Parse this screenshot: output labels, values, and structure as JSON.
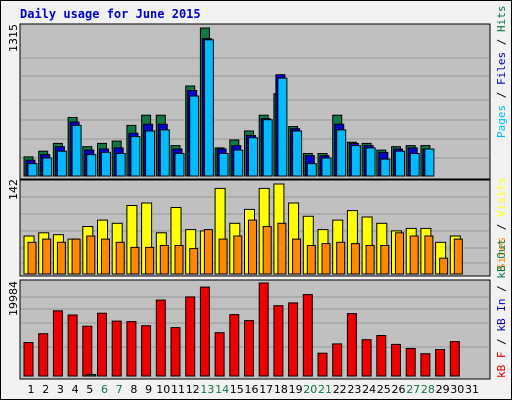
{
  "title": "Daily usage for June 2015",
  "colors": {
    "title": "#0000cc",
    "panel_bg": "#c0c0c0",
    "frame_bg": "#f2f2f2",
    "pages": "#117744",
    "files": "#0000cc",
    "hits": "#00bbff",
    "visits": "#ffff00",
    "sites": "#ff8800",
    "kb_f": "#ee0000",
    "kb_in": "#0000cc",
    "kb_out": "#117744",
    "weekend": "#117744",
    "weekday": "#000000"
  },
  "legends": {
    "top": [
      {
        "text": "Pages",
        "color": "#00bbff"
      },
      {
        "text": " / ",
        "color": "#000000"
      },
      {
        "text": "Files",
        "color": "#0000cc"
      },
      {
        "text": " / ",
        "color": "#000000"
      },
      {
        "text": "Hits",
        "color": "#117744"
      }
    ],
    "middle": [
      {
        "text": "Sites",
        "color": "#ff8800"
      },
      {
        "text": " / ",
        "color": "#000000"
      },
      {
        "text": "Visits",
        "color": "#ffff00"
      }
    ],
    "bottom": [
      {
        "text": "kB F",
        "color": "#ee0000"
      },
      {
        "text": " / ",
        "color": "#000000"
      },
      {
        "text": "kB In",
        "color": "#0000cc"
      },
      {
        "text": " / ",
        "color": "#000000"
      },
      {
        "text": "kB Out",
        "color": "#117744"
      }
    ]
  },
  "chart_data": [
    {
      "type": "bar",
      "panel": "top",
      "ymax_label": "1315",
      "ylim": [
        0,
        1315
      ],
      "categories": [
        "1",
        "2",
        "3",
        "4",
        "5",
        "6",
        "7",
        "8",
        "9",
        "10",
        "11",
        "12",
        "13",
        "14",
        "15",
        "16",
        "17",
        "18",
        "19",
        "20",
        "21",
        "22",
        "23",
        "24",
        "25",
        "26",
        "27",
        "28",
        "29",
        "30",
        "31"
      ],
      "weekend_days": [
        "6",
        "7",
        "13",
        "14",
        "20",
        "21",
        "27",
        "28"
      ],
      "series": [
        {
          "name": "Hits",
          "values": [
            170,
            220,
            290,
            520,
            260,
            290,
            310,
            450,
            540,
            540,
            270,
            800,
            1315,
            250,
            320,
            400,
            540,
            730,
            440,
            200,
            200,
            540,
            300,
            290,
            230,
            260,
            270,
            270,
            0,
            0,
            0
          ]
        },
        {
          "name": "Files",
          "values": [
            140,
            190,
            260,
            480,
            230,
            240,
            250,
            380,
            460,
            460,
            240,
            760,
            1220,
            240,
            270,
            360,
            510,
            900,
            420,
            180,
            180,
            460,
            290,
            270,
            210,
            240,
            250,
            240,
            0,
            0,
            0
          ]
        },
        {
          "name": "Pages",
          "values": [
            110,
            160,
            220,
            450,
            190,
            210,
            200,
            350,
            400,
            410,
            200,
            710,
            1210,
            200,
            230,
            340,
            500,
            870,
            400,
            110,
            160,
            410,
            270,
            250,
            150,
            220,
            200,
            240,
            0,
            0,
            0
          ]
        }
      ]
    },
    {
      "type": "bar",
      "panel": "middle",
      "ymax_label": "142",
      "ylim": [
        0,
        142
      ],
      "categories": [
        "1",
        "2",
        "3",
        "4",
        "5",
        "6",
        "7",
        "8",
        "9",
        "10",
        "11",
        "12",
        "13",
        "14",
        "15",
        "16",
        "17",
        "18",
        "19",
        "20",
        "21",
        "22",
        "23",
        "24",
        "25",
        "26",
        "27",
        "28",
        "29",
        "30",
        "31"
      ],
      "series": [
        {
          "name": "Visits",
          "values": [
            60,
            65,
            62,
            55,
            75,
            85,
            80,
            108,
            112,
            65,
            105,
            70,
            68,
            135,
            80,
            102,
            135,
            142,
            112,
            91,
            70,
            85,
            100,
            90,
            80,
            68,
            72,
            72,
            50,
            60,
            0
          ]
        },
        {
          "name": "Sites",
          "values": [
            50,
            55,
            50,
            55,
            60,
            55,
            50,
            42,
            42,
            45,
            45,
            40,
            70,
            55,
            60,
            85,
            75,
            80,
            55,
            45,
            48,
            50,
            48,
            45,
            45,
            65,
            60,
            60,
            25,
            55,
            0
          ]
        }
      ]
    },
    {
      "type": "bar",
      "panel": "bottom",
      "ymax_label": "19984",
      "ylim": [
        0,
        19984
      ],
      "categories": [
        "1",
        "2",
        "3",
        "4",
        "5",
        "6",
        "7",
        "8",
        "9",
        "10",
        "11",
        "12",
        "13",
        "14",
        "15",
        "16",
        "17",
        "18",
        "19",
        "20",
        "21",
        "22",
        "23",
        "24",
        "25",
        "26",
        "27",
        "28",
        "29",
        "30",
        "31"
      ],
      "series": [
        {
          "name": "kB F",
          "values": [
            7200,
            9100,
            14000,
            13100,
            10700,
            13500,
            11800,
            11700,
            10800,
            16300,
            10400,
            17000,
            19100,
            9300,
            13200,
            11900,
            19984,
            15100,
            15700,
            17500,
            4900,
            6900,
            13400,
            7800,
            8700,
            6800,
            5900,
            4800,
            5700,
            7400,
            0
          ]
        },
        {
          "name": "kB In",
          "values": [
            0,
            0,
            0,
            0,
            0,
            0,
            0,
            0,
            0,
            0,
            0,
            0,
            0,
            0,
            0,
            0,
            0,
            0,
            0,
            0,
            0,
            0,
            0,
            0,
            0,
            0,
            0,
            0,
            0,
            0,
            0
          ]
        },
        {
          "name": "kB Out",
          "values": [
            0,
            0,
            0,
            0,
            300,
            0,
            0,
            0,
            0,
            0,
            0,
            0,
            0,
            0,
            0,
            0,
            0,
            0,
            0,
            0,
            0,
            0,
            0,
            0,
            0,
            0,
            0,
            0,
            0,
            0,
            0
          ]
        }
      ]
    }
  ]
}
